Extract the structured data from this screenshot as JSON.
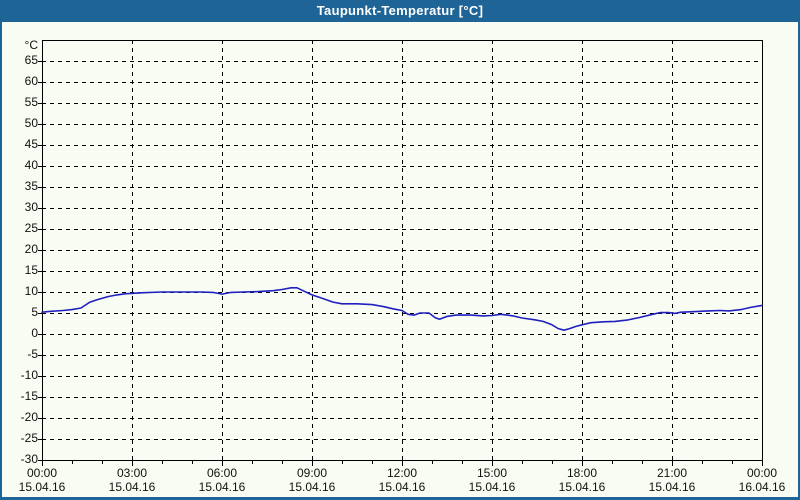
{
  "window": {
    "title": "Taupunkt-Temperatur [°C]",
    "titlebar_color": "#1e6496",
    "border_color": "#1e6496",
    "background_color": "#f9fcf2"
  },
  "chart_data": {
    "type": "line",
    "title": "Taupunkt-Temperatur [°C]",
    "unit_label": "°C",
    "grid": "dashed",
    "grid_color": "#000000",
    "axis_color": "#000000",
    "ylim": [
      -30,
      70
    ],
    "y_ticks": [
      65,
      60,
      55,
      50,
      45,
      40,
      35,
      30,
      25,
      20,
      15,
      10,
      5,
      0,
      -5,
      -10,
      -15,
      -20,
      -25,
      -30
    ],
    "x_range_hours": [
      0,
      24
    ],
    "x_major_step_hours": 3,
    "x_minor_step_hours": 1,
    "x_ticks": [
      {
        "time": "00:00",
        "date": "15.04.16"
      },
      {
        "time": "03:00",
        "date": "15.04.16"
      },
      {
        "time": "06:00",
        "date": "15.04.16"
      },
      {
        "time": "09:00",
        "date": "15.04.16"
      },
      {
        "time": "12:00",
        "date": "15.04.16"
      },
      {
        "time": "15:00",
        "date": "15.04.16"
      },
      {
        "time": "18:00",
        "date": "15.04.16"
      },
      {
        "time": "21:00",
        "date": "15.04.16"
      },
      {
        "time": "00:00",
        "date": "16.04.16"
      }
    ],
    "series": [
      {
        "name": "Taupunkt-Temperatur",
        "color": "#2020c0",
        "points": [
          [
            0,
            5.2
          ],
          [
            0.3,
            5.4
          ],
          [
            0.7,
            5.6
          ],
          [
            1,
            5.8
          ],
          [
            1.3,
            6.2
          ],
          [
            1.45,
            6.9
          ],
          [
            1.6,
            7.6
          ],
          [
            1.85,
            8.2
          ],
          [
            2.2,
            8.9
          ],
          [
            2.5,
            9.3
          ],
          [
            2.8,
            9.6
          ],
          [
            3.3,
            9.8
          ],
          [
            4,
            10
          ],
          [
            4.7,
            10
          ],
          [
            5.3,
            10
          ],
          [
            5.7,
            9.9
          ],
          [
            6,
            9.5
          ],
          [
            6.3,
            9.9
          ],
          [
            6.7,
            10
          ],
          [
            7.2,
            10.1
          ],
          [
            7.7,
            10.3
          ],
          [
            8,
            10.6
          ],
          [
            8.3,
            11
          ],
          [
            8.5,
            11
          ],
          [
            8.7,
            10.3
          ],
          [
            9,
            9.3
          ],
          [
            9.3,
            8.6
          ],
          [
            9.7,
            7.6
          ],
          [
            10,
            7.2
          ],
          [
            10.5,
            7.2
          ],
          [
            11,
            7
          ],
          [
            11.4,
            6.5
          ],
          [
            11.7,
            6
          ],
          [
            12,
            5.6
          ],
          [
            12.2,
            4.7
          ],
          [
            12.4,
            4.5
          ],
          [
            12.6,
            5
          ],
          [
            12.9,
            5
          ],
          [
            13.1,
            3.9
          ],
          [
            13.25,
            3.5
          ],
          [
            13.5,
            4.2
          ],
          [
            13.8,
            4.5
          ],
          [
            14.3,
            4.5
          ],
          [
            14.7,
            4.3
          ],
          [
            15,
            4.4
          ],
          [
            15.3,
            4.7
          ],
          [
            15.7,
            4.3
          ],
          [
            16,
            3.8
          ],
          [
            16.4,
            3.4
          ],
          [
            16.7,
            3
          ],
          [
            17,
            2.2
          ],
          [
            17.2,
            1.3
          ],
          [
            17.4,
            0.9
          ],
          [
            17.6,
            1.3
          ],
          [
            17.8,
            1.8
          ],
          [
            18,
            2.2
          ],
          [
            18.3,
            2.7
          ],
          [
            18.7,
            2.9
          ],
          [
            19.1,
            3
          ],
          [
            19.5,
            3.3
          ],
          [
            19.9,
            3.9
          ],
          [
            20.3,
            4.6
          ],
          [
            20.6,
            5.1
          ],
          [
            20.9,
            5.1
          ],
          [
            21.1,
            4.9
          ],
          [
            21.3,
            5.2
          ],
          [
            21.7,
            5.3
          ],
          [
            22.2,
            5.5
          ],
          [
            22.6,
            5.6
          ],
          [
            22.9,
            5.5
          ],
          [
            23.3,
            5.8
          ],
          [
            23.6,
            6.3
          ],
          [
            23.9,
            6.7
          ],
          [
            24,
            6.8
          ]
        ]
      }
    ]
  }
}
